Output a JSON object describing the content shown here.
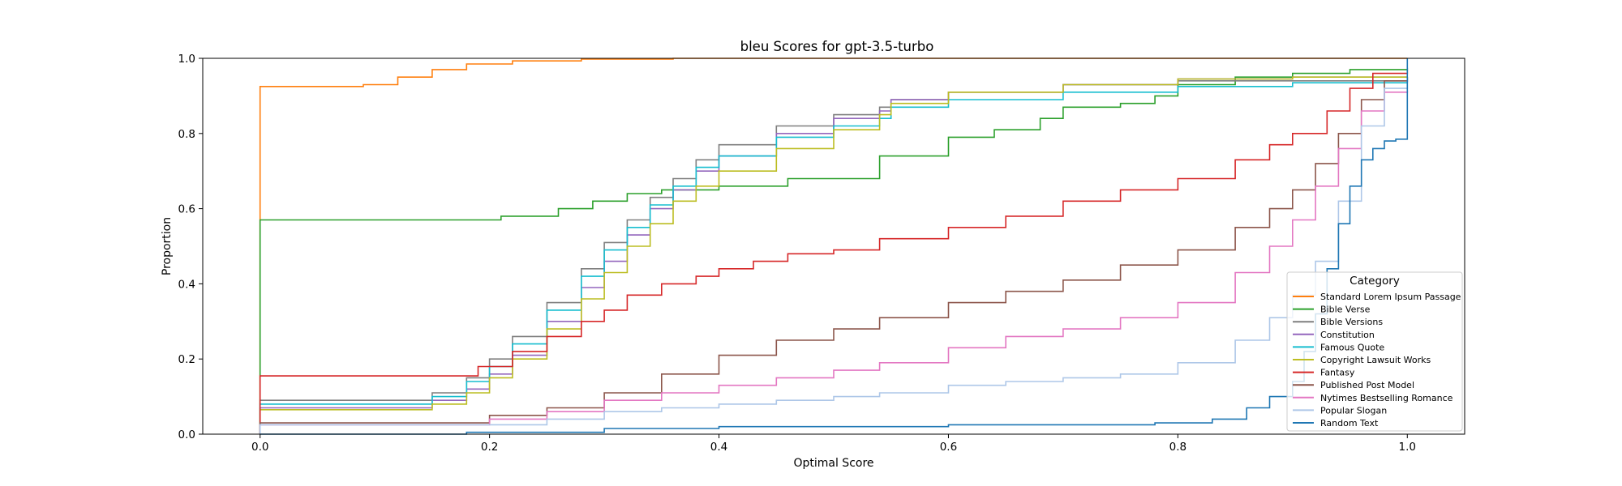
{
  "chart_data": {
    "type": "line",
    "title": "bleu Scores for gpt-3.5-turbo",
    "xlabel": "Optimal Score",
    "ylabel": "Proportion",
    "xlim": [
      -0.05,
      1.05
    ],
    "ylim": [
      0.0,
      1.0
    ],
    "xticks": [
      "0.0",
      "0.2",
      "0.4",
      "0.6",
      "0.8",
      "1.0"
    ],
    "yticks": [
      "0.0",
      "0.2",
      "0.4",
      "0.6",
      "0.8",
      "1.0"
    ],
    "grid": false,
    "legend": {
      "title": "Category",
      "placement": "lower right"
    },
    "series": [
      {
        "name": "Standard Lorem Ipsum Passage",
        "color": "#ff7f0e",
        "x": [
          0.0,
          0.0,
          0.07,
          0.09,
          0.12,
          0.15,
          0.18,
          0.22,
          0.28,
          0.36,
          1.0
        ],
        "y": [
          0.0,
          0.925,
          0.925,
          0.93,
          0.95,
          0.97,
          0.985,
          0.993,
          0.998,
          1.0,
          1.0
        ]
      },
      {
        "name": "Bible Verse",
        "color": "#2ca02c",
        "x": [
          0.0,
          0.0,
          0.18,
          0.21,
          0.26,
          0.29,
          0.32,
          0.35,
          0.4,
          0.46,
          0.54,
          0.54,
          0.6,
          0.64,
          0.68,
          0.7,
          0.75,
          0.78,
          0.8,
          0.85,
          0.9,
          0.95,
          1.0
        ],
        "y": [
          0.0,
          0.57,
          0.57,
          0.58,
          0.6,
          0.62,
          0.64,
          0.65,
          0.66,
          0.68,
          0.72,
          0.74,
          0.79,
          0.81,
          0.84,
          0.87,
          0.88,
          0.9,
          0.93,
          0.95,
          0.96,
          0.97,
          0.975
        ]
      },
      {
        "name": "Bible Versions",
        "color": "#7f7f7f",
        "x": [
          0.0,
          0.0,
          0.12,
          0.15,
          0.18,
          0.2,
          0.22,
          0.25,
          0.28,
          0.3,
          0.32,
          0.34,
          0.36,
          0.38,
          0.4,
          0.45,
          0.5,
          0.54,
          0.55,
          0.6,
          0.7,
          0.8,
          0.9,
          1.0
        ],
        "y": [
          0.0,
          0.09,
          0.09,
          0.11,
          0.15,
          0.2,
          0.26,
          0.35,
          0.44,
          0.51,
          0.57,
          0.63,
          0.68,
          0.73,
          0.77,
          0.82,
          0.85,
          0.87,
          0.89,
          0.91,
          0.93,
          0.94,
          0.94,
          0.95
        ]
      },
      {
        "name": "Constitution",
        "color": "#9467bd",
        "x": [
          0.0,
          0.0,
          0.12,
          0.15,
          0.18,
          0.2,
          0.22,
          0.25,
          0.28,
          0.3,
          0.32,
          0.34,
          0.36,
          0.38,
          0.4,
          0.45,
          0.5,
          0.54,
          0.55,
          0.6,
          0.7,
          0.8,
          0.9,
          1.0
        ],
        "y": [
          0.0,
          0.07,
          0.07,
          0.09,
          0.12,
          0.16,
          0.21,
          0.3,
          0.39,
          0.46,
          0.53,
          0.6,
          0.65,
          0.7,
          0.74,
          0.8,
          0.84,
          0.86,
          0.89,
          0.91,
          0.93,
          0.945,
          0.95,
          0.95
        ]
      },
      {
        "name": "Famous Quote",
        "color": "#17becf",
        "x": [
          0.0,
          0.0,
          0.12,
          0.15,
          0.18,
          0.2,
          0.22,
          0.25,
          0.28,
          0.3,
          0.32,
          0.34,
          0.36,
          0.38,
          0.4,
          0.45,
          0.5,
          0.54,
          0.55,
          0.6,
          0.7,
          0.8,
          0.9,
          1.0
        ],
        "y": [
          0.0,
          0.08,
          0.08,
          0.1,
          0.14,
          0.18,
          0.24,
          0.33,
          0.42,
          0.49,
          0.55,
          0.61,
          0.66,
          0.71,
          0.74,
          0.79,
          0.82,
          0.84,
          0.87,
          0.89,
          0.91,
          0.925,
          0.935,
          0.94
        ]
      },
      {
        "name": "Copyright Lawsuit Works",
        "color": "#bcbd22",
        "x": [
          0.0,
          0.0,
          0.12,
          0.15,
          0.18,
          0.2,
          0.22,
          0.25,
          0.28,
          0.3,
          0.32,
          0.34,
          0.36,
          0.38,
          0.4,
          0.45,
          0.5,
          0.54,
          0.55,
          0.6,
          0.7,
          0.8,
          0.9,
          1.0
        ],
        "y": [
          0.0,
          0.065,
          0.065,
          0.08,
          0.11,
          0.15,
          0.2,
          0.28,
          0.36,
          0.43,
          0.5,
          0.56,
          0.62,
          0.66,
          0.7,
          0.76,
          0.81,
          0.85,
          0.88,
          0.91,
          0.93,
          0.945,
          0.95,
          0.95
        ]
      },
      {
        "name": "Fantasy",
        "color": "#d62728",
        "x": [
          0.0,
          0.0,
          0.16,
          0.19,
          0.22,
          0.25,
          0.28,
          0.3,
          0.32,
          0.35,
          0.38,
          0.4,
          0.43,
          0.46,
          0.5,
          0.54,
          0.54,
          0.6,
          0.65,
          0.7,
          0.75,
          0.8,
          0.85,
          0.88,
          0.9,
          0.93,
          0.95,
          0.97,
          1.0
        ],
        "y": [
          0.0,
          0.155,
          0.155,
          0.18,
          0.22,
          0.26,
          0.3,
          0.33,
          0.37,
          0.4,
          0.42,
          0.44,
          0.46,
          0.48,
          0.49,
          0.5,
          0.52,
          0.55,
          0.58,
          0.62,
          0.65,
          0.68,
          0.73,
          0.77,
          0.8,
          0.86,
          0.92,
          0.96,
          0.97
        ]
      },
      {
        "name": "Published Post Model",
        "color": "#8c564b",
        "x": [
          0.0,
          0.0,
          0.15,
          0.2,
          0.25,
          0.3,
          0.35,
          0.4,
          0.45,
          0.5,
          0.54,
          0.6,
          0.65,
          0.7,
          0.75,
          0.8,
          0.85,
          0.88,
          0.9,
          0.92,
          0.94,
          0.96,
          0.98,
          1.0
        ],
        "y": [
          0.0,
          0.03,
          0.03,
          0.05,
          0.07,
          0.11,
          0.16,
          0.21,
          0.25,
          0.28,
          0.31,
          0.35,
          0.38,
          0.41,
          0.45,
          0.49,
          0.55,
          0.6,
          0.65,
          0.72,
          0.8,
          0.89,
          0.94,
          0.95
        ]
      },
      {
        "name": "Nytimes Bestselling Romance",
        "color": "#e377c2",
        "x": [
          0.0,
          0.0,
          0.15,
          0.2,
          0.25,
          0.3,
          0.35,
          0.4,
          0.45,
          0.5,
          0.54,
          0.6,
          0.65,
          0.7,
          0.75,
          0.8,
          0.85,
          0.88,
          0.9,
          0.92,
          0.94,
          0.96,
          0.98,
          1.0
        ],
        "y": [
          0.0,
          0.025,
          0.025,
          0.04,
          0.06,
          0.09,
          0.11,
          0.13,
          0.15,
          0.17,
          0.19,
          0.23,
          0.26,
          0.28,
          0.31,
          0.35,
          0.43,
          0.5,
          0.57,
          0.66,
          0.76,
          0.86,
          0.91,
          0.915
        ]
      },
      {
        "name": "Popular Slogan",
        "color": "#aec7e8",
        "x": [
          0.0,
          0.0,
          0.2,
          0.25,
          0.3,
          0.35,
          0.4,
          0.45,
          0.5,
          0.54,
          0.6,
          0.65,
          0.7,
          0.75,
          0.8,
          0.85,
          0.88,
          0.9,
          0.92,
          0.94,
          0.96,
          0.98,
          1.0
        ],
        "y": [
          0.0,
          0.025,
          0.025,
          0.04,
          0.06,
          0.07,
          0.08,
          0.09,
          0.1,
          0.11,
          0.13,
          0.14,
          0.15,
          0.16,
          0.19,
          0.25,
          0.31,
          0.37,
          0.46,
          0.62,
          0.82,
          0.92,
          0.93
        ]
      },
      {
        "name": "Random Text",
        "color": "#1f77b4",
        "x": [
          0.0,
          0.18,
          0.3,
          0.4,
          0.6,
          0.78,
          0.83,
          0.86,
          0.88,
          0.9,
          0.91,
          0.92,
          0.93,
          0.94,
          0.95,
          0.96,
          0.97,
          0.98,
          0.99,
          1.0,
          1.0
        ],
        "y": [
          0.0,
          0.005,
          0.015,
          0.02,
          0.025,
          0.03,
          0.04,
          0.07,
          0.1,
          0.14,
          0.22,
          0.32,
          0.44,
          0.56,
          0.66,
          0.73,
          0.76,
          0.78,
          0.785,
          0.785,
          1.0
        ]
      }
    ]
  }
}
